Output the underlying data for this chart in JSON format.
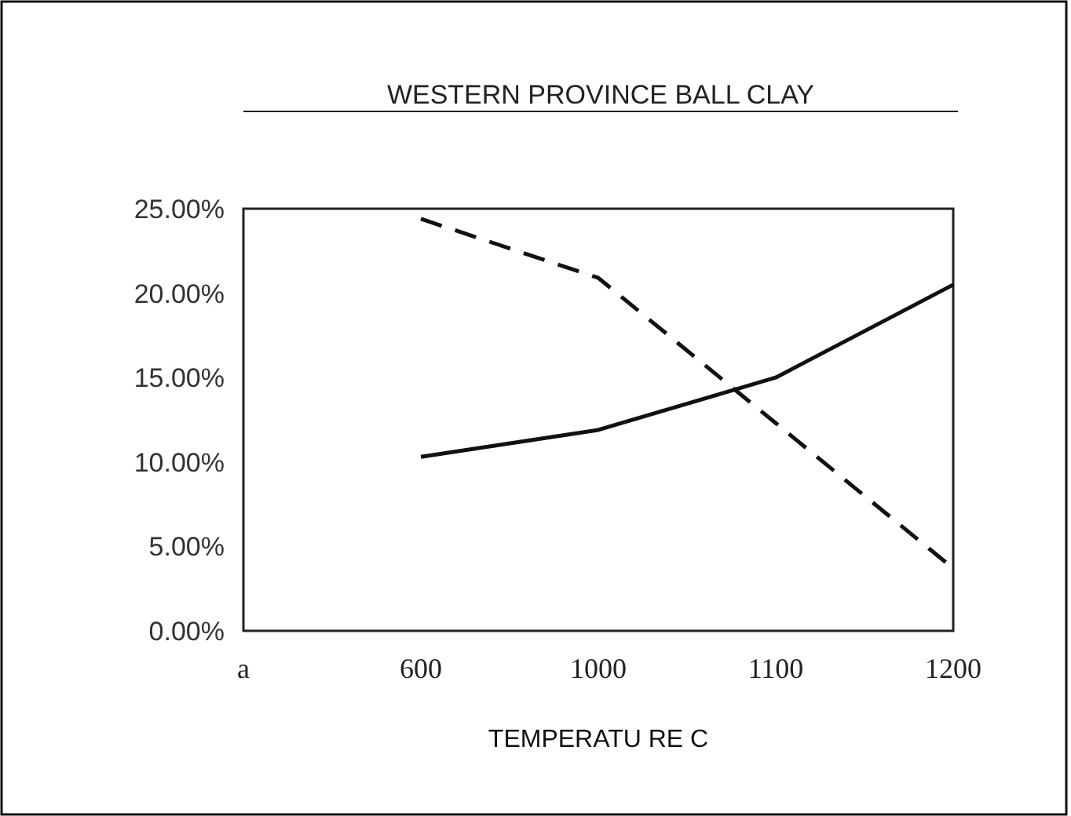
{
  "chart_data": {
    "type": "line",
    "title": "WESTERN PROVINCE BALL CLAY",
    "xlabel": "TEMPERATU RE C",
    "categories": [
      "a",
      "600",
      "1000",
      "1100",
      "1200"
    ],
    "ylim": [
      0,
      25
    ],
    "yticks": [
      {
        "value": 0,
        "label": "0.00%"
      },
      {
        "value": 5,
        "label": "5.00%"
      },
      {
        "value": 10,
        "label": "10.00%"
      },
      {
        "value": 15,
        "label": "15.00%"
      },
      {
        "value": 20,
        "label": "20.00%"
      },
      {
        "value": 25,
        "label": "25.00%"
      }
    ],
    "series": [
      {
        "color": "#111111",
        "line_style": "dashed",
        "values": [
          null,
          24.4,
          20.9,
          12.3,
          3.7
        ]
      },
      {
        "color": "#111111",
        "line_style": "solid",
        "values": [
          null,
          10.3,
          11.9,
          15,
          20.5
        ]
      }
    ],
    "grid": false,
    "marker": "none"
  }
}
